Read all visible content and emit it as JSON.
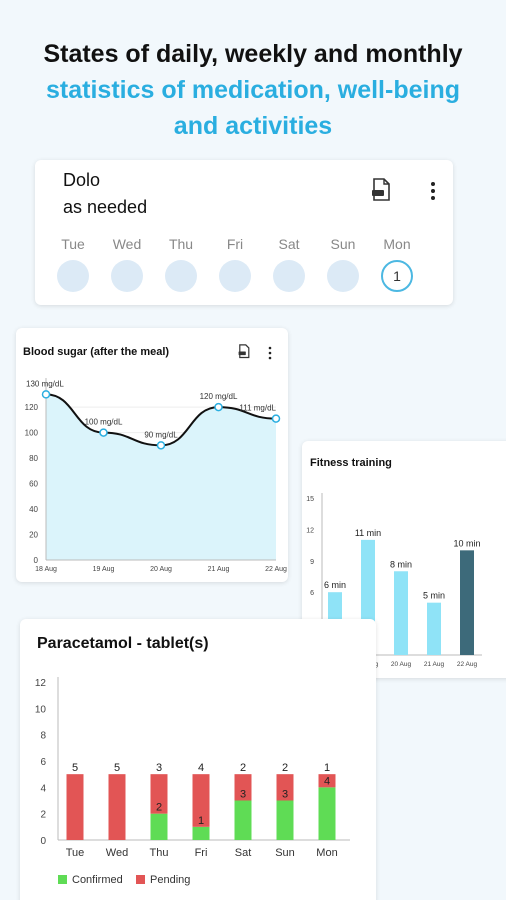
{
  "header": {
    "line1": "States of daily, weekly and monthly",
    "line2": "statistics of medication, well-being",
    "line3": "and activities"
  },
  "colors": {
    "accent": "#2aaee0",
    "confirmed": "#5fdc55",
    "pending": "#e25555",
    "fitness_bar": "#8fe3f7",
    "fitness_bar_last": "#3d6a7a"
  },
  "icons": {
    "report": "pdf-report-icon",
    "menu": "more-vertical-icon"
  },
  "dolo_card": {
    "name": "Dolo",
    "schedule": "as needed",
    "days": [
      {
        "label": "Tue",
        "count": ""
      },
      {
        "label": "Wed",
        "count": ""
      },
      {
        "label": "Thu",
        "count": ""
      },
      {
        "label": "Fri",
        "count": ""
      },
      {
        "label": "Sat",
        "count": ""
      },
      {
        "label": "Sun",
        "count": ""
      },
      {
        "label": "Mon",
        "count": "1"
      }
    ]
  },
  "chart_data": [
    {
      "type": "line",
      "title": "Blood sugar (after the meal)",
      "x": [
        "18 Aug",
        "19 Aug",
        "20 Aug",
        "21 Aug",
        "22 Aug"
      ],
      "series": [
        {
          "values": [
            130,
            100,
            90,
            120,
            111
          ]
        }
      ],
      "data_labels": [
        "130 mg/dL",
        "100 mg/dL",
        "90 mg/dL",
        "120 mg/dL",
        "111 mg/dL"
      ],
      "yticks": [
        "0",
        "20",
        "40",
        "60",
        "80",
        "100",
        "120"
      ],
      "ylim": [
        0,
        135
      ]
    },
    {
      "type": "bar",
      "title": "Fitness training",
      "categories": [
        "18 Aug",
        "19 Aug",
        "20 Aug",
        "21 Aug",
        "22 Aug"
      ],
      "values": [
        6,
        11,
        8,
        5,
        10
      ],
      "data_labels": [
        "6 min",
        "11 min",
        "8 min",
        "5 min",
        "10 min"
      ],
      "yticks": [
        "0",
        "3",
        "6",
        "9",
        "12",
        "15"
      ],
      "ylim": [
        0,
        15
      ]
    },
    {
      "type": "bar",
      "title": "Paracetamol - tablet(s)",
      "categories": [
        "Tue",
        "Wed",
        "Thu",
        "Fri",
        "Sat",
        "Sun",
        "Mon"
      ],
      "series": [
        {
          "name": "Confirmed",
          "values": [
            0,
            0,
            2,
            1,
            3,
            3,
            4
          ]
        },
        {
          "name": "Pending",
          "values": [
            5,
            5,
            3,
            4,
            2,
            2,
            1
          ]
        }
      ],
      "yticks": [
        "0",
        "2",
        "4",
        "6",
        "8",
        "10",
        "12"
      ],
      "ylim": [
        0,
        12
      ],
      "legend": "bottom-left"
    }
  ]
}
